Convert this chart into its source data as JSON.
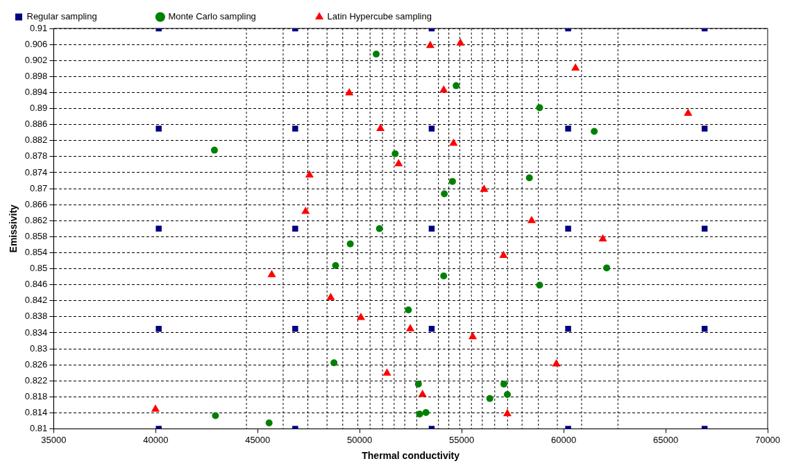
{
  "chart_data": {
    "type": "scatter",
    "xlabel": "Thermal conductivity",
    "ylabel": "Emissivity",
    "xlim": [
      35000,
      70000
    ],
    "xticks": [
      35000,
      40000,
      45000,
      50000,
      55000,
      60000,
      65000,
      70000
    ],
    "ylim": [
      0.81,
      0.91
    ],
    "yticks": [
      0.81,
      0.814,
      0.818,
      0.822,
      0.826,
      0.83,
      0.834,
      0.838,
      0.842,
      0.846,
      0.85,
      0.854,
      0.858,
      0.862,
      0.866,
      0.87,
      0.874,
      0.878,
      0.882,
      0.886,
      0.89,
      0.894,
      0.898,
      0.902,
      0.906,
      0.91
    ],
    "grid": "y",
    "legend": "top",
    "series": [
      {
        "name": "Regular sampling",
        "color": "#000080",
        "marker": "square",
        "x": [
          40150,
          46840,
          53530,
          60220,
          66910,
          40150,
          46840,
          53530,
          60220,
          66910,
          40150,
          46840,
          53530,
          60220,
          66910,
          40150,
          46840,
          53530,
          60220,
          66910,
          40150,
          46840,
          53530,
          60220,
          66910
        ],
        "values": [
          0.91,
          0.91,
          0.91,
          0.91,
          0.91,
          0.885,
          0.885,
          0.885,
          0.885,
          0.885,
          0.86,
          0.86,
          0.86,
          0.86,
          0.86,
          0.835,
          0.835,
          0.835,
          0.835,
          0.835,
          0.81,
          0.81,
          0.81,
          0.81,
          0.81
        ]
      },
      {
        "name": "Monte Carlo sampling",
        "color": "#008000",
        "marker": "circle",
        "x": [
          50810,
          54730,
          58820,
          61500,
          42880,
          51740,
          58320,
          54550,
          54150,
          50970,
          49540,
          48820,
          62110,
          54120,
          58820,
          52390,
          48740,
          52880,
          57070,
          57240,
          56380,
          53250,
          52940,
          42930,
          45560
        ],
        "values": [
          0.9036,
          0.8957,
          0.8902,
          0.8843,
          0.8796,
          0.8787,
          0.8727,
          0.8718,
          0.8687,
          0.86,
          0.8562,
          0.8508,
          0.8502,
          0.8482,
          0.8459,
          0.8397,
          0.8265,
          0.8212,
          0.8212,
          0.8186,
          0.8176,
          0.8141,
          0.8137,
          0.8133,
          0.8115
        ]
      },
      {
        "name": "Latin Hypercube sampling",
        "color": "#ff0000",
        "marker": "triangle",
        "x": [
          54940,
          53460,
          60580,
          54120,
          49490,
          66100,
          51020,
          54600,
          51910,
          47540,
          56100,
          47350,
          58430,
          61920,
          57050,
          45690,
          48580,
          50060,
          52480,
          55540,
          59640,
          51340,
          53080,
          39990,
          57240
        ],
        "values": [
          0.9063,
          0.9057,
          0.9001,
          0.8946,
          0.8939,
          0.8888,
          0.885,
          0.8813,
          0.8762,
          0.8734,
          0.8698,
          0.8643,
          0.862,
          0.8574,
          0.8533,
          0.8485,
          0.8428,
          0.8378,
          0.835,
          0.833,
          0.8262,
          0.8239,
          0.8186,
          0.8149,
          0.8138
        ]
      }
    ],
    "ref_lines": [
      {
        "axis": "x",
        "value": 44450,
        "line_style": "dashed"
      },
      {
        "axis": "x",
        "value": 46250,
        "line_style": "dashed"
      },
      {
        "axis": "x",
        "value": 47460,
        "line_style": "dashed"
      },
      {
        "axis": "x",
        "value": 48400,
        "line_style": "dashed"
      },
      {
        "axis": "x",
        "value": 49170,
        "line_style": "dashed"
      },
      {
        "axis": "x",
        "value": 49910,
        "line_style": "dashed"
      },
      {
        "axis": "x",
        "value": 50510,
        "line_style": "dashed"
      },
      {
        "axis": "x",
        "value": 51120,
        "line_style": "dashed"
      },
      {
        "axis": "x",
        "value": 51690,
        "line_style": "dashed"
      },
      {
        "axis": "x",
        "value": 52210,
        "line_style": "dashed"
      },
      {
        "axis": "x",
        "value": 52800,
        "line_style": "dashed"
      },
      {
        "axis": "x",
        "value": 53860,
        "line_style": "dashed"
      },
      {
        "axis": "x",
        "value": 54370,
        "line_style": "dashed"
      },
      {
        "axis": "x",
        "value": 54910,
        "line_style": "dashed"
      },
      {
        "axis": "x",
        "value": 55480,
        "line_style": "dashed"
      },
      {
        "axis": "x",
        "value": 56010,
        "line_style": "dashed"
      },
      {
        "axis": "x",
        "value": 56620,
        "line_style": "dashed"
      },
      {
        "axis": "x",
        "value": 57250,
        "line_style": "dashed"
      },
      {
        "axis": "x",
        "value": 57960,
        "line_style": "dashed"
      },
      {
        "axis": "x",
        "value": 58760,
        "line_style": "dashed"
      },
      {
        "axis": "x",
        "value": 59690,
        "line_style": "dashed"
      },
      {
        "axis": "x",
        "value": 60880,
        "line_style": "dashed"
      },
      {
        "axis": "x",
        "value": 62660,
        "line_style": "dashed"
      }
    ]
  }
}
